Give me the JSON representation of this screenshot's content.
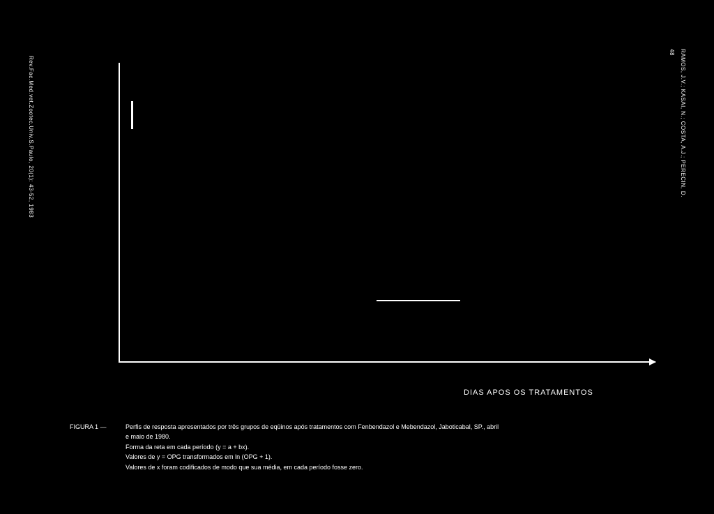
{
  "page_number": "48",
  "authors": "RAMOS, J.V.; KASAI, N.; COSTA, A.J.; PERECIN, D.",
  "citation": "Rev.Fac.Med.vet.Zootec.Univ.S.Paulo, 20(1): 43-52, 1983",
  "chart": {
    "type": "line",
    "background_color": "#000000",
    "axis_color": "#ffffff",
    "text_color": "#ffffff",
    "x_axis_label": "DIAS APOS OS TRATAMENTOS",
    "legend_sample_line_width": 120
  },
  "caption": {
    "figure_label": "FIGURA 1 —",
    "line1": "Perfis de resposta apresentados por três grupos de eqüinos após tratamentos com Fenbendazol e Mebendazol, Jaboticabal, SP., abril",
    "line2": "e maio de 1980.",
    "line3": "Forma da reta em cada período (y = a + bx).",
    "line4": "Valores de y = OPG transformados em ln (OPG + 1).",
    "line5": "Valores de x foram codificados de modo que sua média, em cada período fosse zero."
  }
}
